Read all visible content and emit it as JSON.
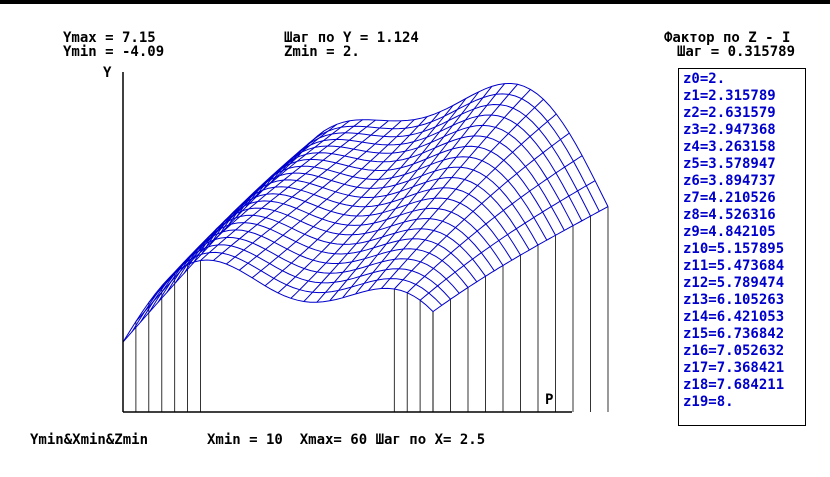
{
  "header": {
    "ymax": "Ymax = 7.15",
    "ymin": "Ymin = -4.09",
    "step_y": "Шаг по Y = 1.124",
    "zmin": "Zmin = 2.",
    "z_factor": "Фактор по Z - I",
    "z_step": "Шаг = 0.315789"
  },
  "axes": {
    "y_label": "Y",
    "p_label": "P"
  },
  "footer": {
    "corner": "Ymin&Xmin&Zmin",
    "x_range": "Xmin = 10  Xmax= 60 Шаг по X= 2.5"
  },
  "z_levels": [
    "z0=2.",
    "z1=2.315789",
    "z2=2.631579",
    "z3=2.947368",
    "z4=3.263158",
    "z5=3.578947",
    "z6=3.894737",
    "z7=4.210526",
    "z8=4.526316",
    "z9=4.842105",
    "z10=5.157895",
    "z11=5.473684",
    "z12=5.789474",
    "z13=6.105263",
    "z14=6.421053",
    "z15=6.736842",
    "z16=7.052632",
    "z17=7.368421",
    "z18=7.684211",
    "z19=8."
  ],
  "colors": {
    "mesh": "#0000cc",
    "axes": "#000000",
    "background": "#ffffff"
  }
}
